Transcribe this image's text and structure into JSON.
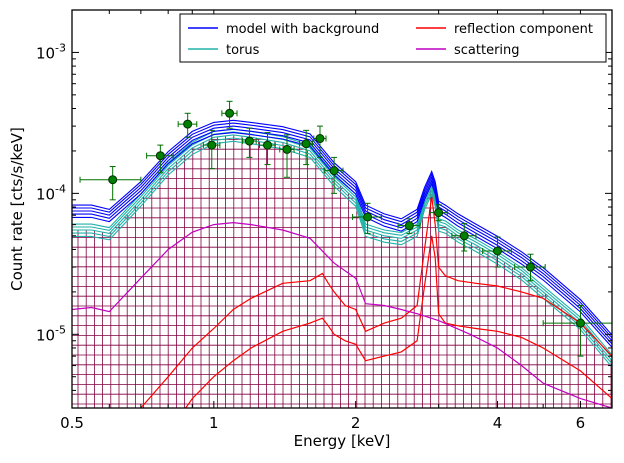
{
  "chart_data": {
    "type": "line",
    "title": "",
    "xlabel": "Energy [keV]",
    "ylabel": "Count rate [cts/s/keV]",
    "x_scale": "log",
    "y_scale": "log",
    "xlim": [
      0.5,
      7.0
    ],
    "ylim": [
      3e-06,
      0.002
    ],
    "grid": false,
    "legend_position": "top-right",
    "x_ticks": [
      {
        "value": 0.5,
        "label": "0.5"
      },
      {
        "value": 1,
        "label": "1"
      },
      {
        "value": 2,
        "label": "2"
      },
      {
        "value": 4,
        "label": "4"
      },
      {
        "value": 6,
        "label": "6"
      }
    ],
    "y_ticks": [
      {
        "value": 1e-05,
        "base": "10",
        "exp": "-5"
      },
      {
        "value": 0.0001,
        "base": "10",
        "exp": "-4"
      },
      {
        "value": 0.001,
        "base": "10",
        "exp": "-3"
      }
    ],
    "legend": [
      {
        "label": "model with background",
        "color": "#0000ff"
      },
      {
        "label": "reflection component",
        "color": "#ff0000"
      },
      {
        "label": "torus",
        "color": "#20b2aa"
      },
      {
        "label": "scattering",
        "color": "#c000c0"
      }
    ],
    "series": [
      {
        "name": "model with background",
        "color": "#0000ff",
        "x": [
          0.5,
          0.55,
          0.6,
          0.7,
          0.8,
          0.9,
          1.0,
          1.1,
          1.2,
          1.4,
          1.6,
          1.8,
          2.0,
          2.1,
          2.3,
          2.5,
          2.7,
          2.8,
          2.9,
          2.95,
          3.0,
          3.1,
          3.3,
          3.6,
          4.0,
          4.5,
          5.0,
          6.0,
          7.0
        ],
        "y": [
          7.5e-05,
          7.5e-05,
          7e-05,
          0.00011,
          0.00018,
          0.00025,
          0.00029,
          0.0003,
          0.00029,
          0.00027,
          0.00024,
          0.00015,
          0.00011,
          7.5e-05,
          6.5e-05,
          6e-05,
          7e-05,
          0.0001,
          0.00013,
          0.00011,
          8e-05,
          7.5e-05,
          6.5e-05,
          5.5e-05,
          4.5e-05,
          3.5e-05,
          2.7e-05,
          1.6e-05,
          9e-06
        ]
      },
      {
        "name": "torus",
        "color": "#20b2aa",
        "x": [
          0.5,
          0.55,
          0.6,
          0.7,
          0.8,
          0.9,
          1.0,
          1.1,
          1.2,
          1.4,
          1.6,
          1.8,
          2.0,
          2.1,
          2.3,
          2.5,
          2.7,
          2.8,
          2.9,
          2.95,
          3.0,
          3.1,
          3.3,
          3.6,
          4.0,
          4.5,
          5.0,
          6.0,
          7.0
        ],
        "y": [
          5.5e-05,
          5.5e-05,
          5.2e-05,
          9e-05,
          0.00015,
          0.00021,
          0.00025,
          0.00026,
          0.00025,
          0.00023,
          0.0002,
          0.000125,
          9e-05,
          5.5e-05,
          5e-05,
          4.8e-05,
          5.5e-05,
          8.5e-05,
          0.00011,
          9e-05,
          6e-05,
          5.8e-05,
          5e-05,
          4.3e-05,
          3.5e-05,
          2.7e-05,
          2e-05,
          1.2e-05,
          6.5e-06
        ]
      },
      {
        "name": "reflection component",
        "color": "#ff0000",
        "x": [
          0.7,
          0.8,
          0.9,
          1.0,
          1.1,
          1.2,
          1.4,
          1.6,
          1.7,
          1.75,
          1.8,
          1.9,
          2.0,
          2.1,
          2.3,
          2.5,
          2.7,
          2.8,
          2.9,
          2.95,
          3.0,
          3.1,
          3.3,
          3.6,
          4.0,
          4.5,
          5.0,
          6.0,
          7.0
        ],
        "y": [
          3e-06,
          5e-06,
          8e-06,
          1.1e-05,
          1.5e-05,
          1.8e-05,
          2.3e-05,
          2.4e-05,
          2.7e-05,
          2.3e-05,
          2e-05,
          1.6e-05,
          1.5e-05,
          1.05e-05,
          1.2e-05,
          1.3e-05,
          1.6e-05,
          4e-05,
          9.5e-05,
          6e-05,
          3e-05,
          2.6e-05,
          2.4e-05,
          2.3e-05,
          2.2e-05,
          2e-05,
          1.8e-05,
          1.2e-05,
          7e-06
        ]
      },
      {
        "name": "reflection component (lower)",
        "color": "#ff0000",
        "x": [
          0.8,
          0.9,
          1.0,
          1.1,
          1.2,
          1.4,
          1.6,
          1.7,
          1.75,
          1.8,
          1.9,
          2.0,
          2.1,
          2.3,
          2.5,
          2.7,
          2.8,
          2.9,
          2.95,
          3.0,
          3.1,
          3.3,
          3.6,
          4.0,
          4.5,
          5.0,
          6.0,
          7.0
        ],
        "y": [
          2e-06,
          3.5e-06,
          5e-06,
          6.5e-06,
          8e-06,
          1.05e-05,
          1.2e-05,
          1.3e-05,
          1.15e-05,
          1e-05,
          9e-06,
          8.5e-06,
          6.5e-06,
          7e-06,
          7.5e-06,
          9e-06,
          2.2e-05,
          5e-05,
          3.5e-05,
          1.4e-05,
          1.2e-05,
          1.15e-05,
          1.1e-05,
          1.05e-05,
          9.5e-06,
          8e-06,
          5.5e-06,
          3.5e-06
        ]
      },
      {
        "name": "scattering",
        "color": "#c000c0",
        "x": [
          0.5,
          0.55,
          0.6,
          0.7,
          0.8,
          0.9,
          1.0,
          1.1,
          1.2,
          1.4,
          1.6,
          1.8,
          2.0,
          2.1,
          2.3,
          2.5,
          2.7,
          3.0,
          3.5,
          4.0,
          4.5,
          5.0,
          6.0,
          7.0
        ],
        "y": [
          1.5e-05,
          1.55e-05,
          1.45e-05,
          2.5e-05,
          4e-05,
          5.3e-05,
          6e-05,
          6.2e-05,
          6e-05,
          5.5e-05,
          4.8e-05,
          3.2e-05,
          2.5e-05,
          1.65e-05,
          1.6e-05,
          1.5e-05,
          1.4e-05,
          1.25e-05,
          1e-05,
          8e-06,
          6e-06,
          4.5e-06,
          3.5e-06,
          3e-06
        ]
      }
    ],
    "data_points": {
      "name": "data",
      "color": "#007000",
      "x": [
        0.61,
        0.77,
        0.88,
        0.99,
        1.08,
        1.19,
        1.3,
        1.43,
        1.57,
        1.68,
        1.8,
        2.12,
        2.6,
        3.0,
        3.4,
        4.0,
        4.7,
        6.0
      ],
      "y": [
        0.000125,
        0.000185,
        0.00031,
        0.00022,
        0.00037,
        0.000235,
        0.00022,
        0.000205,
        0.000225,
        0.000245,
        0.000145,
        6.8e-05,
        5.9e-05,
        7.3e-05,
        5e-05,
        3.9e-05,
        3e-05,
        1.2e-05
      ],
      "xerr": [
        0.09,
        0.05,
        0.04,
        0.04,
        0.04,
        0.04,
        0.05,
        0.05,
        0.05,
        0.05,
        0.08,
        0.15,
        0.14,
        0.13,
        0.2,
        0.28,
        0.35,
        1.0
      ],
      "ylo": [
        9e-05,
        0.00014,
        0.00025,
        0.00015,
        0.00029,
        0.00018,
        0.00016,
        0.00013,
        0.00016,
        0.00018,
        0.0001,
        5.2e-05,
        5.2e-05,
        6.4e-05,
        3.9e-05,
        3e-05,
        2.4e-05,
        7e-06
      ],
      "yhi": [
        0.000155,
        0.00022,
        0.00037,
        0.00028,
        0.00045,
        0.00029,
        0.00027,
        0.00026,
        0.00028,
        0.0003,
        0.00018,
        8.5e-05,
        6.6e-05,
        8.3e-05,
        6.1e-05,
        4.9e-05,
        3.7e-05,
        1.6e-05
      ]
    }
  }
}
